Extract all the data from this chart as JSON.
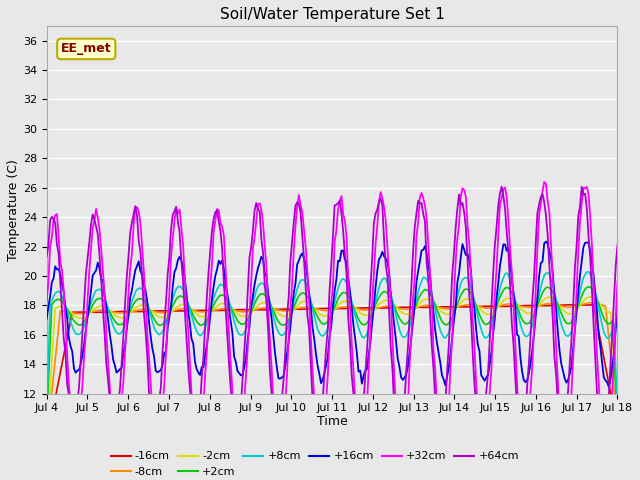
{
  "title": "Soil/Water Temperature Set 1",
  "xlabel": "Time",
  "ylabel": "Temperature (C)",
  "ylim": [
    12,
    37
  ],
  "yticks": [
    12,
    14,
    16,
    18,
    20,
    22,
    24,
    26,
    28,
    30,
    32,
    34,
    36
  ],
  "xtick_labels": [
    "Jul 4",
    "Jul 5",
    "Jul 6",
    "Jul 7",
    "Jul 8",
    "Jul 9",
    "Jul 10",
    "Jul 11",
    "Jul 12",
    "Jul 13",
    "Jul 14",
    "Jul 15",
    "Jul 16",
    "Jul 17",
    "Jul 18"
  ],
  "series_colors": {
    "-16cm": "#dd0000",
    "-8cm": "#ff8800",
    "-2cm": "#dddd00",
    "+2cm": "#00cc00",
    "+8cm": "#00cccc",
    "+16cm": "#0000dd",
    "+32cm": "#ff00ff",
    "+64cm": "#aa00cc"
  },
  "legend_label": "EE_met",
  "legend_bg": "#ffffcc",
  "legend_border": "#bbaa00",
  "legend_text_color": "#880000",
  "bg_color": "#e8e8e8",
  "grid_color": "#ffffff",
  "n_points": 336
}
